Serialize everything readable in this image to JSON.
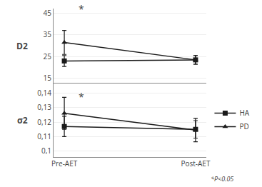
{
  "chart_data": [
    {
      "type": "line",
      "y_label": "D2",
      "categories": [
        "Pre-AET",
        "Post-AET"
      ],
      "tick_labels": "y",
      "ylim": [
        13,
        47
      ],
      "yticks": [
        15,
        25,
        35,
        45
      ],
      "grid": true,
      "series": [
        {
          "name": "PD",
          "color": "#1a1a1a",
          "marker": "triangle",
          "values": [
            31.5,
            23.5
          ],
          "errors": [
            5.5,
            2.0
          ]
        },
        {
          "name": "HA",
          "color": "#1a1a1a",
          "marker": "square",
          "values": [
            23.0,
            23.5
          ],
          "errors": [
            2.5,
            2.0
          ]
        }
      ],
      "annotations": [
        {
          "text": "*",
          "x": 0.13,
          "y": 43.0
        }
      ]
    },
    {
      "type": "line",
      "y_label": "σ2",
      "categories": [
        "Pre-AET",
        "Post-AET"
      ],
      "ylim": [
        0.096,
        0.147
      ],
      "yticks": [
        {
          "value": 0.1,
          "label": "0,1"
        },
        {
          "value": 0.11,
          "label": "0,11"
        },
        {
          "value": 0.12,
          "label": "0,12"
        },
        {
          "value": 0.13,
          "label": "0,13"
        },
        {
          "value": 0.14,
          "label": "0,14"
        }
      ],
      "grid": true,
      "legend": "right",
      "series": [
        {
          "name": "PD",
          "color": "#1a1a1a",
          "marker": "triangle",
          "values": [
            0.126,
            0.1145
          ],
          "errors": [
            0.011,
            0.008
          ]
        },
        {
          "name": "HA",
          "color": "#1a1a1a",
          "marker": "square",
          "values": [
            0.117,
            0.115
          ],
          "errors": [
            0.007,
            0.006
          ]
        }
      ],
      "annotations": [
        {
          "text": "*",
          "x": 0.13,
          "y": 0.143
        }
      ],
      "note": "*P<0.05"
    }
  ]
}
